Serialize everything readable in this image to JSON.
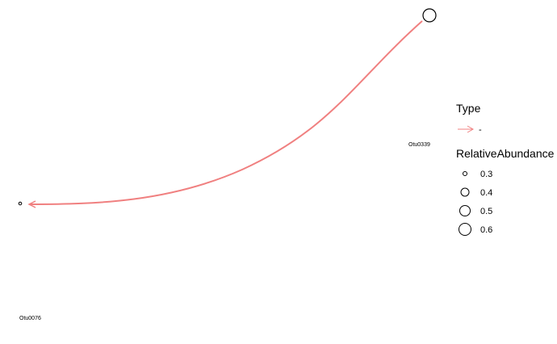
{
  "nodes": [
    {
      "id": "Otu0339",
      "label": "Otu0339",
      "relative_abundance": 0.6
    },
    {
      "id": "Otu0076",
      "label": "Otu0076",
      "relative_abundance": 0.3
    }
  ],
  "edges": [
    {
      "from": "Otu0339",
      "to": "Otu0076",
      "type": "-",
      "directed": true
    }
  ],
  "colors": {
    "edge": "#f08080",
    "node_stroke": "#000000",
    "text": "#000000"
  },
  "legend": {
    "type_title": "Type",
    "type_entries": [
      {
        "label": "-"
      }
    ],
    "size_title": "RelativeAbundance",
    "size_entries": [
      "0.3",
      "0.4",
      "0.5",
      "0.6"
    ]
  }
}
